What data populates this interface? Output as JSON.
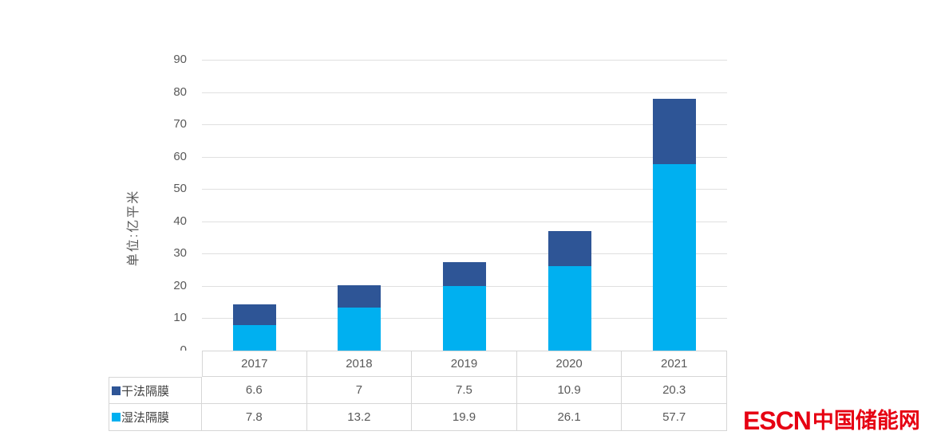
{
  "chart_data": {
    "type": "bar",
    "stacked": true,
    "title": "",
    "categories": [
      "2017",
      "2018",
      "2019",
      "2020",
      "2021"
    ],
    "series": [
      {
        "name": "干法隔膜",
        "color": "#2E5596",
        "values": [
          6.6,
          7,
          7.5,
          10.9,
          20.3
        ],
        "labels": [
          "6.6",
          "7",
          "7.5",
          "10.9",
          "20.3"
        ]
      },
      {
        "name": "湿法隔膜",
        "color": "#00B0F0",
        "values": [
          7.8,
          13.2,
          19.9,
          26.1,
          57.7
        ],
        "labels": [
          "7.8",
          "13.2",
          "19.9",
          "26.1",
          "57.7"
        ]
      }
    ],
    "stack_order_bottom_to_top": [
      "湿法隔膜",
      "干法隔膜"
    ],
    "xlabel": "",
    "ylabel": "单位:亿平米",
    "ylim": [
      0,
      90
    ],
    "ytick_step": 10,
    "grid": "horizontal",
    "legend_position": "table-row-headers",
    "colors": {
      "gridline": "#E0E0E0",
      "table_border": "#D6D6D6",
      "tick_text": "#595959",
      "legend_text": "#404040",
      "background": "#ffffff"
    }
  },
  "logo": {
    "text_latin": "ESCN",
    "text_cjk": "中国储能网",
    "color": "#E60012"
  }
}
